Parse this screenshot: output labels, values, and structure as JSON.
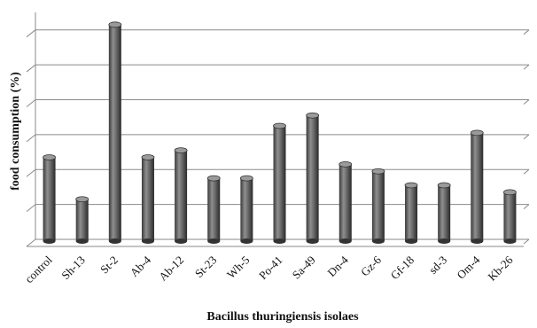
{
  "chart_data": {
    "type": "bar",
    "title": "",
    "xlabel": "Bacillus thuringiensis isolaes",
    "ylabel": "food consumption (%)",
    "categories": [
      "control",
      "Sh-13",
      "St-2",
      "Ab-4",
      "Ab-12",
      "St-23",
      "Wh-5",
      "Po-41",
      "Sa-49",
      "Dn-4",
      "Gz-6",
      "Gf-18",
      "sd-3",
      "Om-4",
      "Kb-26"
    ],
    "values": [
      2.4,
      1.2,
      6.2,
      2.4,
      2.6,
      1.8,
      1.8,
      3.3,
      3.6,
      2.2,
      2.0,
      1.6,
      1.6,
      3.1,
      1.4
    ],
    "ylim": [
      0,
      6.5
    ],
    "grid": true,
    "y_tick_labels_shown": false,
    "style": "3d-cylinder",
    "colors": {
      "bar": "#555555",
      "bar_highlight": "#9a9a9a",
      "grid": "#8a8a8a"
    }
  }
}
